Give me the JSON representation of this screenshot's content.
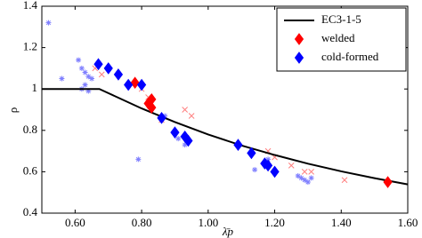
{
  "chart_data": {
    "type": "scatter",
    "x_label": "λ̄p",
    "y_label": "ρ",
    "xlim": [
      0.5,
      1.6
    ],
    "ylim": [
      0.4,
      1.4
    ],
    "xticks": [
      {
        "value": 0.6,
        "label": "0.60"
      },
      {
        "value": 0.8,
        "label": "0.80"
      },
      {
        "value": 1.0,
        "label": "1.00"
      },
      {
        "value": 1.2,
        "label": "1.20"
      },
      {
        "value": 1.4,
        "label": "1.40"
      },
      {
        "value": 1.6,
        "label": "1.60"
      }
    ],
    "yticks": [
      0.4,
      0.6,
      0.8,
      1,
      1.2,
      1.4
    ],
    "grid": false,
    "legend": "upper right",
    "series": [
      {
        "name": "EC3-1-5",
        "marker": "line",
        "color": "#000000",
        "x": [
          0.5,
          0.673,
          0.7,
          0.8,
          0.9,
          1.0,
          1.1,
          1.2,
          1.3,
          1.4,
          1.5,
          1.6
        ],
        "values": [
          1,
          1,
          0.98,
          0.906,
          0.84,
          0.78,
          0.727,
          0.681,
          0.639,
          0.602,
          0.569,
          0.539
        ]
      },
      {
        "name": "welded",
        "marker": "diamond",
        "color": "#ff0000",
        "x": [
          0.78,
          0.82,
          0.83,
          0.83,
          1.54
        ],
        "values": [
          1.03,
          0.93,
          0.95,
          0.91,
          0.55
        ]
      },
      {
        "name": "cold-formed",
        "marker": "diamond",
        "color": "#0000ff",
        "x": [
          0.67,
          0.7,
          0.73,
          0.76,
          0.8,
          0.86,
          0.9,
          0.93,
          0.94,
          1.09,
          1.13,
          1.17,
          1.18,
          1.2
        ],
        "values": [
          1.12,
          1.1,
          1.07,
          1.02,
          1.02,
          0.86,
          0.79,
          0.77,
          0.75,
          0.73,
          0.69,
          0.64,
          0.63,
          0.6
        ]
      },
      {
        "marker": "asterisk",
        "color": "#8080ff",
        "x": [
          0.52,
          0.56,
          0.61,
          0.62,
          0.63,
          0.64,
          0.63,
          0.64,
          0.62,
          0.65,
          0.79,
          0.87,
          0.91,
          0.93,
          1.14,
          1.28,
          1.29,
          1.3,
          1.31,
          1.27,
          1.18
        ],
        "values": [
          1.32,
          1.05,
          1.14,
          1.1,
          1.08,
          1.06,
          1.02,
          0.99,
          1.0,
          1.05,
          0.66,
          0.87,
          0.76,
          0.73,
          0.61,
          0.57,
          0.56,
          0.55,
          0.57,
          0.58,
          0.66
        ]
      },
      {
        "marker": "cross",
        "color": "#ff8080",
        "x": [
          0.66,
          0.68,
          0.8,
          0.82,
          0.93,
          0.95,
          0.86,
          1.18,
          1.2,
          1.25,
          1.29,
          1.31,
          1.41
        ],
        "values": [
          1.1,
          1.07,
          1.0,
          0.96,
          0.9,
          0.87,
          0.85,
          0.7,
          0.67,
          0.63,
          0.6,
          0.6,
          0.56
        ]
      }
    ]
  }
}
